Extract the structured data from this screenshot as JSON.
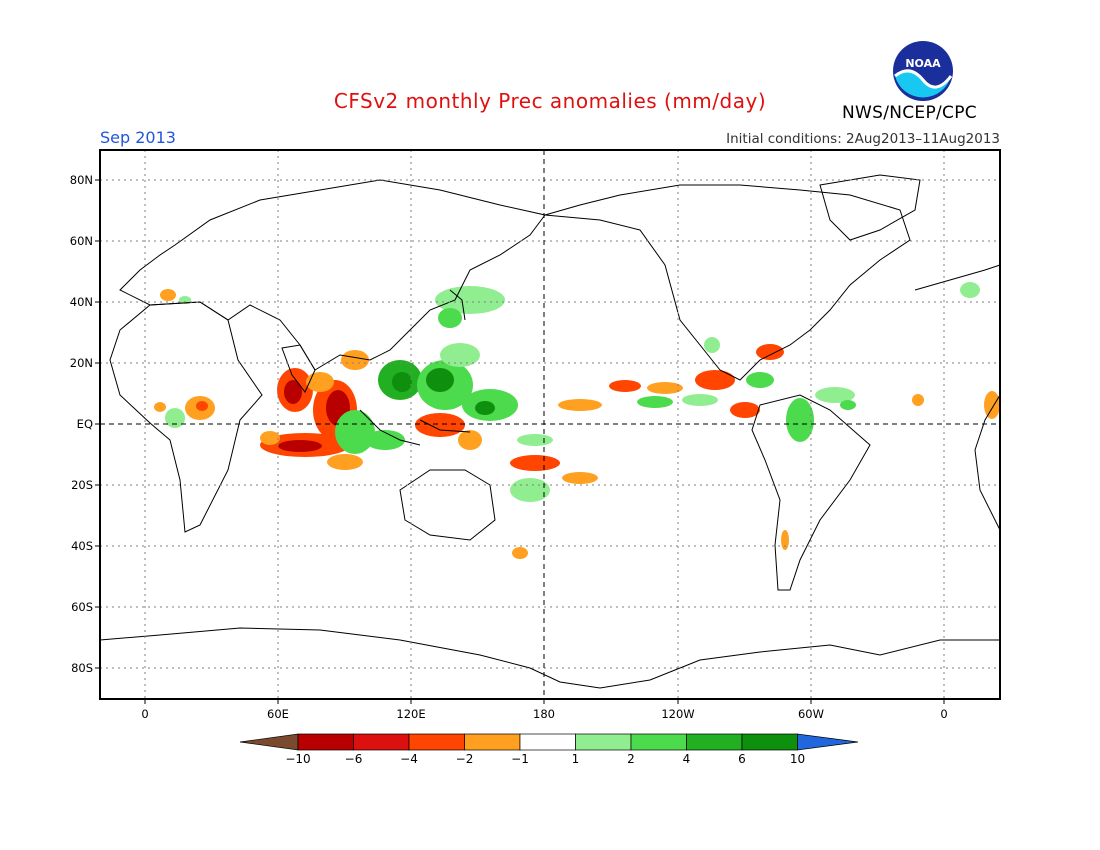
{
  "title": "CFSv2 monthly Prec anomalies (mm/day)",
  "period": "Sep 2013",
  "initial_conditions": "Initial conditions: 2Aug2013–11Aug2013",
  "agency": "NWS/NCEP/CPC",
  "logo_text": "NOAA",
  "map": {
    "lat_labels": [
      "80N",
      "60N",
      "40N",
      "20N",
      "EQ",
      "20S",
      "40S",
      "60S",
      "80S"
    ],
    "lon_labels": [
      "0",
      "60E",
      "120E",
      "180",
      "120W",
      "60W",
      "0"
    ]
  },
  "colorbar": {
    "labels": [
      "−10",
      "−6",
      "−4",
      "−2",
      "−1",
      "1",
      "2",
      "4",
      "6",
      "10"
    ],
    "colors": [
      "#7a4a2e",
      "#b80000",
      "#dd1010",
      "#ff4500",
      "#ffa020",
      "#ffffff",
      "#90ee90",
      "#4cdb4c",
      "#22b022",
      "#0e8f0e",
      "#2266dd"
    ]
  }
}
